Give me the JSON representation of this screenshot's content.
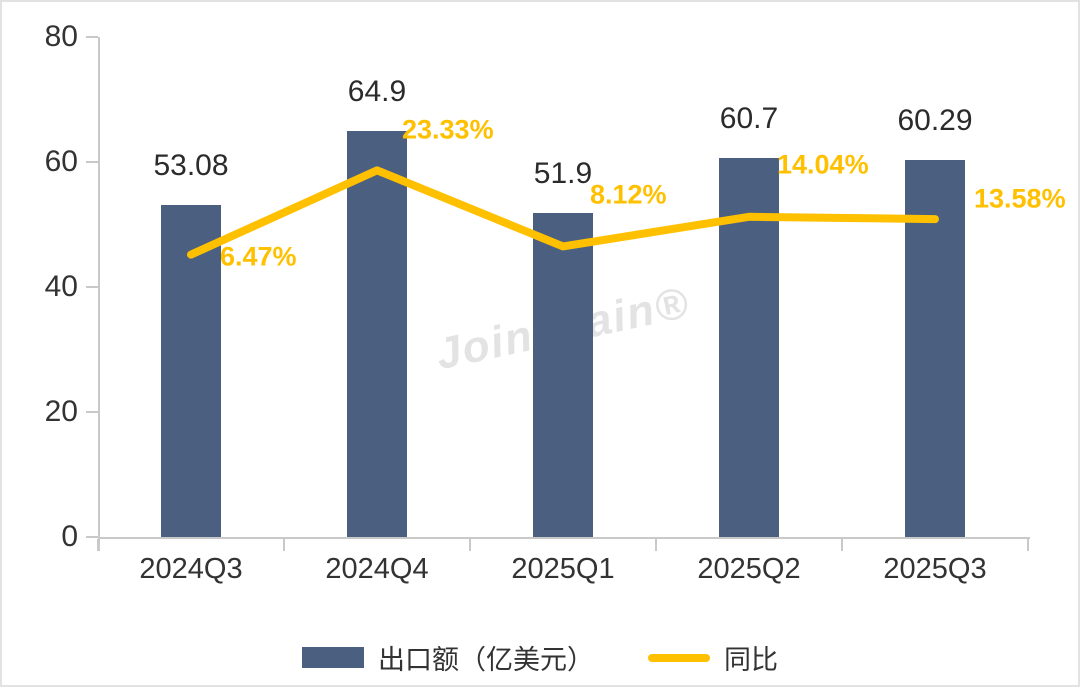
{
  "chart_data": {
    "type": "combo",
    "categories": [
      "2024Q3",
      "2024Q4",
      "2025Q1",
      "2025Q2",
      "2025Q3"
    ],
    "series": [
      {
        "name": "出口额（亿美元）",
        "render": "bar",
        "axis": "left",
        "values": [
          53.08,
          64.9,
          51.9,
          60.7,
          60.29
        ],
        "labels": [
          "53.08",
          "64.9",
          "51.9",
          "60.7",
          "60.29"
        ],
        "color": "#4b5f80"
      },
      {
        "name": "同比",
        "render": "line",
        "axis": "right",
        "values": [
          6.47,
          23.33,
          8.12,
          14.04,
          13.58
        ],
        "labels": [
          "6.47%",
          "23.33%",
          "8.12%",
          "14.04%",
          "13.58%"
        ],
        "color": "#ffc000"
      }
    ],
    "left_axis": {
      "min": 0,
      "max": 80,
      "ticks": [
        0,
        20,
        40,
        60,
        80
      ]
    },
    "right_axis": {
      "min": -50,
      "max": 50,
      "visible": false
    },
    "title": "",
    "xlabel": "",
    "ylabel": "",
    "grid": false,
    "legend_position": "bottom",
    "watermark": "Joinchain®",
    "colors": {
      "text": "#333333",
      "axis": "#c9c9c9",
      "watermark": "#e3e3e3"
    }
  }
}
